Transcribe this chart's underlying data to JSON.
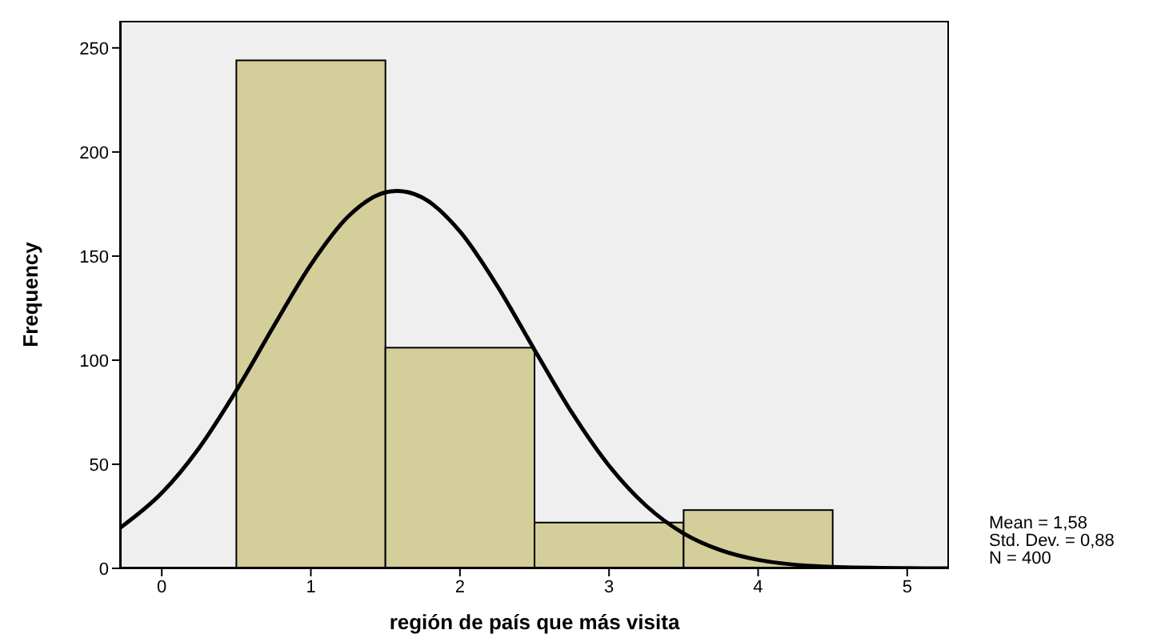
{
  "chart_data": {
    "type": "histogram",
    "xlabel": "región de país que más visita",
    "ylabel": "Frequency",
    "bins": [
      0.5,
      1.5,
      2.5,
      3.5,
      4.5
    ],
    "values": [
      244,
      106,
      22,
      28
    ],
    "color": "#d3ce9a",
    "series": [
      {
        "type": "line",
        "color": "#000000",
        "x": [
          -0.28,
          0,
          0.25,
          0.5,
          0.75,
          1,
          1.25,
          1.5,
          1.58,
          1.75,
          2,
          2.25,
          2.5,
          2.75,
          3,
          3.25,
          3.5,
          3.75,
          4,
          4.5,
          5,
          5.28
        ],
        "values": [
          19.4,
          36.2,
          57.8,
          85.4,
          116.2,
          145.9,
          169.0,
          180.6,
          181.3,
          178.0,
          161.8,
          135.7,
          105.0,
          74.9,
          49.3,
          30.0,
          16.8,
          8.7,
          4.1,
          0.7,
          0.1,
          0.0
        ]
      }
    ],
    "xlim": [
      -0.28,
      5.28
    ],
    "xticks": [
      0,
      1,
      2,
      3,
      4,
      5
    ],
    "ylim": [
      0,
      263
    ],
    "yticks": [
      0,
      50,
      100,
      150,
      200,
      250
    ],
    "grid": false,
    "legend": false,
    "marker": "none",
    "annotations": [
      "Mean = 1,58",
      "Std. Dev. = 0,88",
      "N = 400"
    ]
  }
}
